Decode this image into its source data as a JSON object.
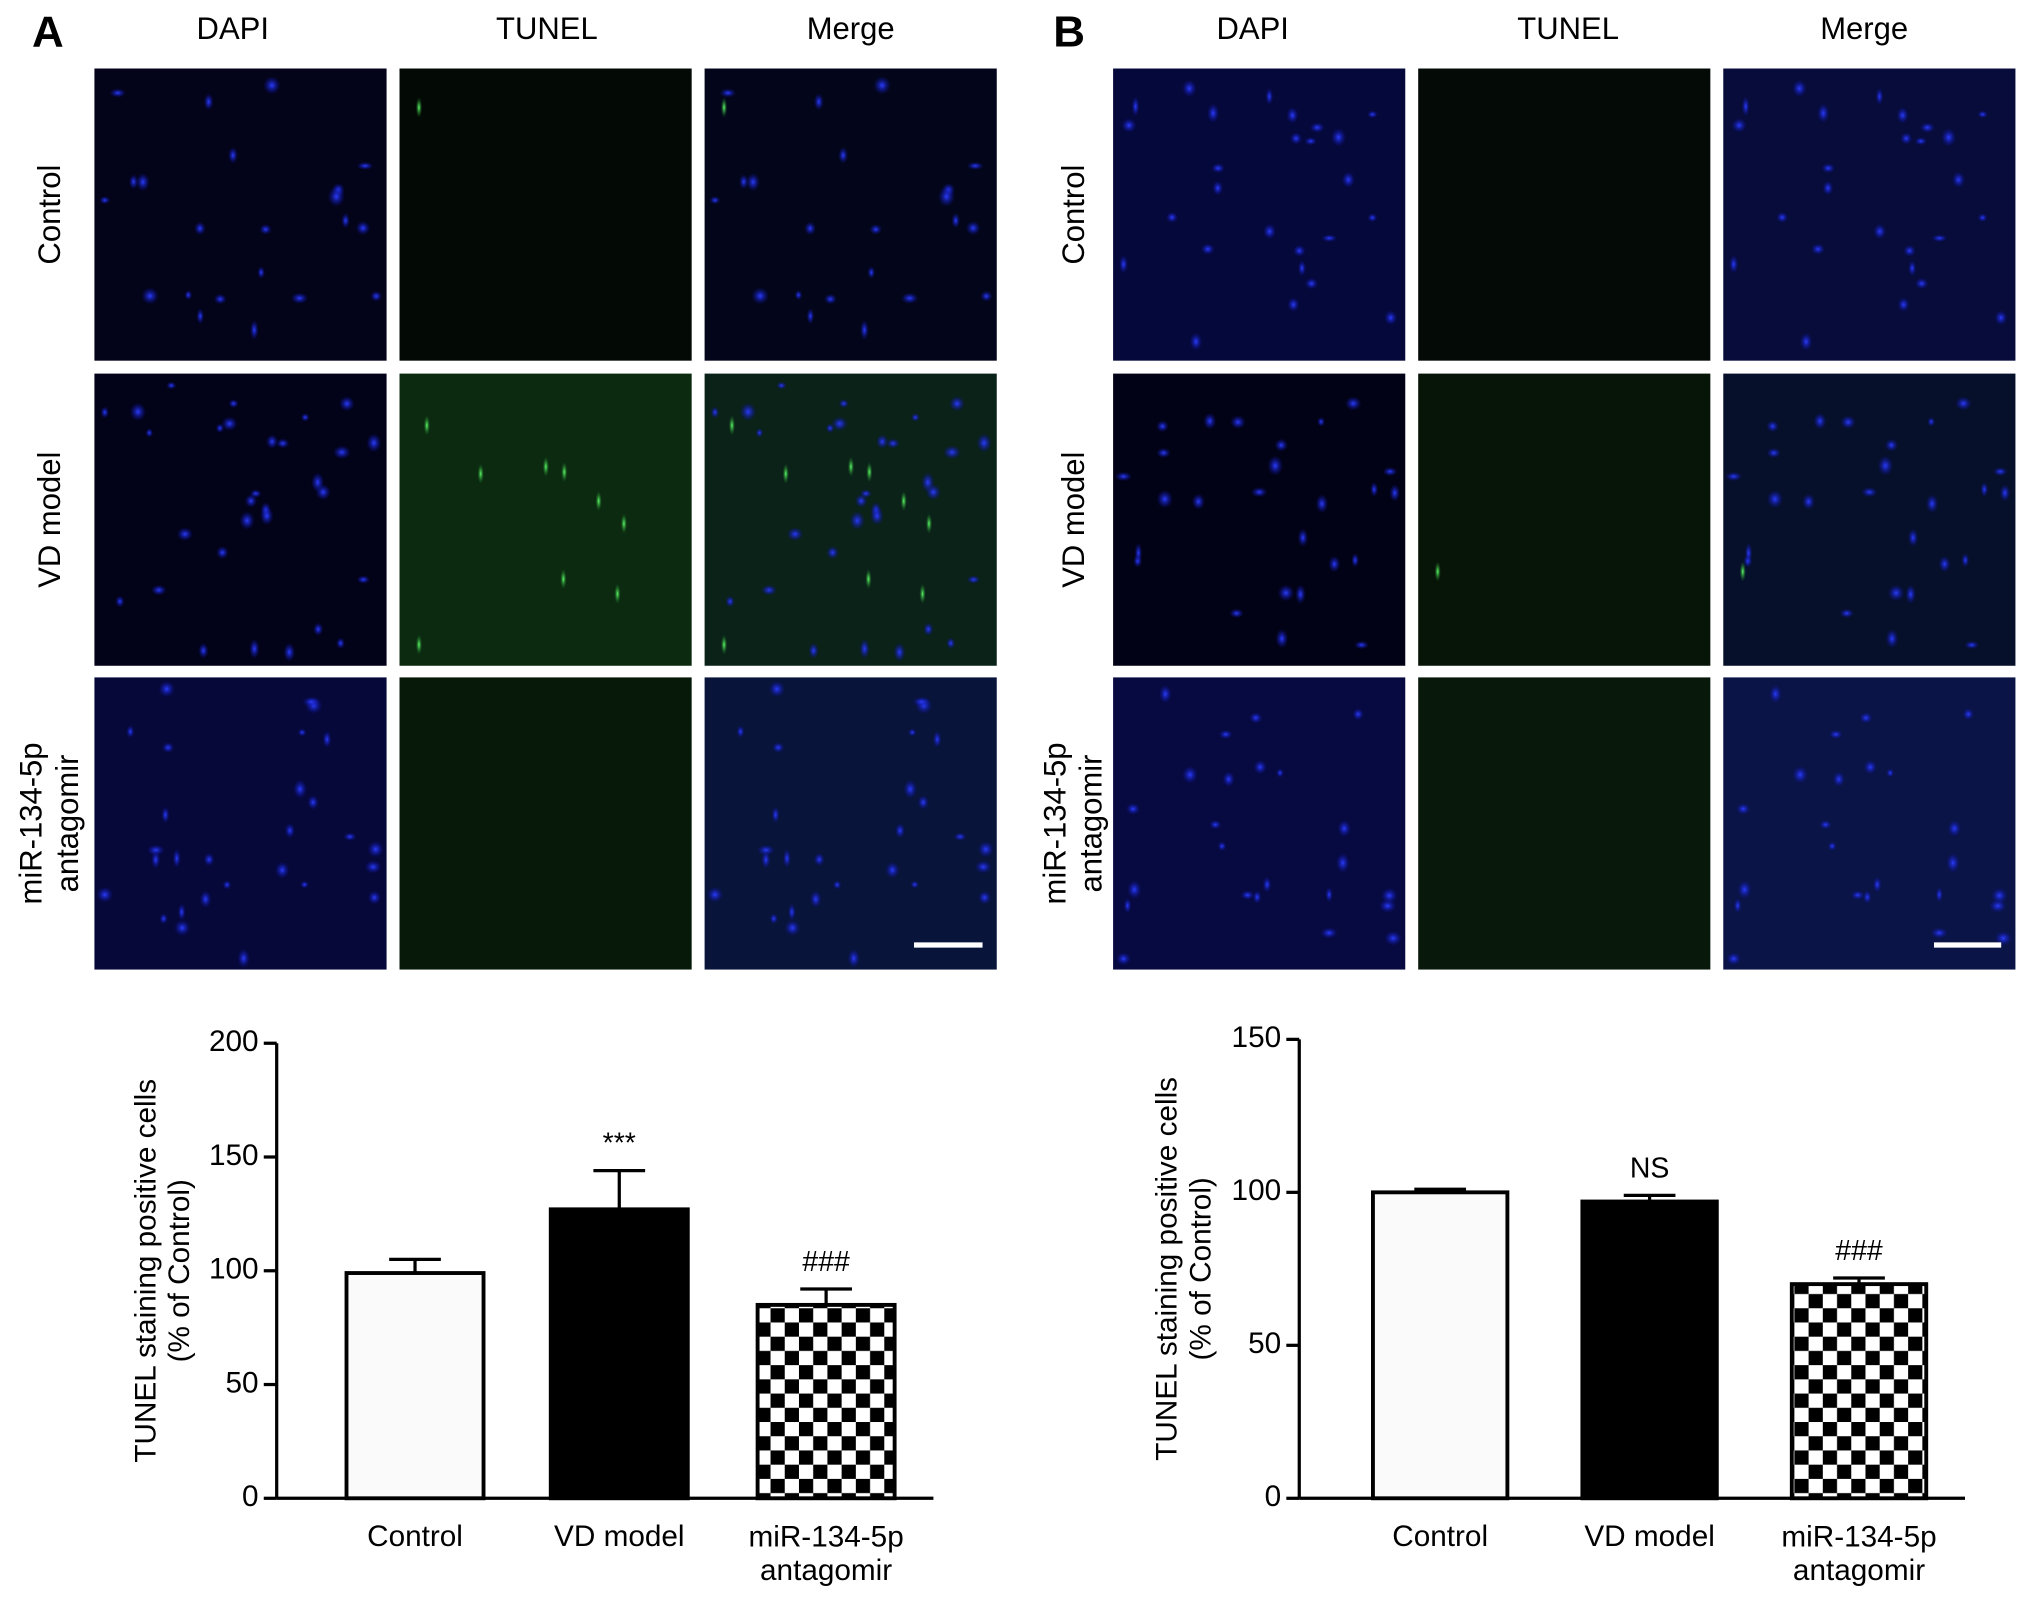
{
  "panels": [
    {
      "label": "A",
      "columns": [
        "DAPI",
        "TUNEL",
        "Merge"
      ],
      "rows": [
        "Control",
        "VD model",
        "miR-134-5p\nantagomir"
      ]
    },
    {
      "label": "B",
      "columns": [
        "DAPI",
        "TUNEL",
        "Merge"
      ],
      "rows": [
        "Control",
        "VD model",
        "miR-134-5p\nantagomir"
      ]
    }
  ],
  "chart_data": [
    {
      "type": "bar",
      "ylabel": "TUNEL staining positive cells\n(% of Control)",
      "categories": [
        "Control",
        "VD model",
        "miR-134-5p\nantagomir"
      ],
      "values": [
        99,
        127,
        85
      ],
      "errors": [
        6,
        17,
        7
      ],
      "annotations": [
        null,
        "***",
        "###"
      ],
      "fills": [
        "#fafafa",
        "#000000",
        "checkerboard"
      ],
      "ylim": [
        0,
        200
      ],
      "yticks": [
        0,
        50,
        100,
        150,
        200
      ],
      "grid": false
    },
    {
      "type": "bar",
      "ylabel": "TUNEL staining positive cells\n(% of Control)",
      "categories": [
        "Control",
        "VD model",
        "miR-134-5p\nantagomir"
      ],
      "values": [
        100,
        97,
        70
      ],
      "errors": [
        1,
        2,
        2
      ],
      "annotations": [
        null,
        "NS",
        "###"
      ],
      "fills": [
        "#fafafa",
        "#000000",
        "checkerboard"
      ],
      "ylim": [
        0,
        150
      ],
      "yticks": [
        0,
        50,
        100,
        150
      ],
      "grid": false
    }
  ]
}
